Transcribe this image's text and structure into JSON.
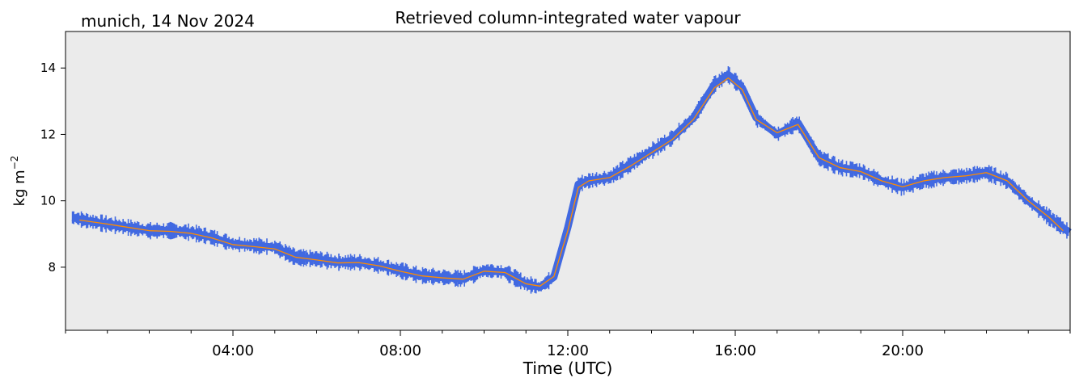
{
  "chart_data": {
    "type": "line",
    "title": "Retrieved column-integrated water vapour",
    "location_date": "munich, 14 Nov 2024",
    "xlabel": "Time (UTC)",
    "ylabel": "kg m",
    "ylabel_exponent": "−2",
    "xlim": [
      "00:00",
      "24:00"
    ],
    "ylim": [
      6.1,
      15.1
    ],
    "x_ticks": [
      "04:00",
      "08:00",
      "12:00",
      "16:00",
      "20:00"
    ],
    "y_ticks": [
      "8",
      "10",
      "12",
      "14"
    ],
    "grid": false,
    "legend": "none",
    "background_color": "#ebebeb",
    "series": [
      {
        "role": "raw retrieval",
        "color": "#4169e1",
        "x": [
          "00:10",
          "00:30",
          "01:00",
          "01:30",
          "02:00",
          "02:30",
          "03:00",
          "03:30",
          "04:00",
          "04:30",
          "05:00",
          "05:30",
          "06:00",
          "06:30",
          "07:00",
          "07:30",
          "08:00",
          "08:30",
          "09:00",
          "09:30",
          "10:00",
          "10:30",
          "11:00",
          "11:20",
          "11:40",
          "12:00",
          "12:15",
          "12:30",
          "13:00",
          "13:30",
          "14:00",
          "14:30",
          "15:00",
          "15:30",
          "15:50",
          "16:10",
          "16:30",
          "17:00",
          "17:30",
          "18:00",
          "18:30",
          "19:00",
          "19:30",
          "20:00",
          "20:30",
          "21:00",
          "21:30",
          "22:00",
          "22:30",
          "23:00",
          "23:30",
          "23:59"
        ],
        "y": [
          9.5,
          9.4,
          9.3,
          9.2,
          9.1,
          9.1,
          9.05,
          8.9,
          8.7,
          8.65,
          8.6,
          8.3,
          8.25,
          8.15,
          8.15,
          8.05,
          7.9,
          7.75,
          7.7,
          7.65,
          7.9,
          7.85,
          7.5,
          7.4,
          7.7,
          9.2,
          10.5,
          10.6,
          10.7,
          11.1,
          11.5,
          11.9,
          12.5,
          13.5,
          13.8,
          13.4,
          12.5,
          12.0,
          12.35,
          11.3,
          11.0,
          10.9,
          10.6,
          10.4,
          10.6,
          10.7,
          10.75,
          10.85,
          10.6,
          10.0,
          9.5,
          9.05
        ]
      },
      {
        "role": "smoothed",
        "color": "#ff8c00",
        "x": [
          "00:20",
          "01:00",
          "01:30",
          "02:00",
          "02:30",
          "03:00",
          "03:30",
          "04:00",
          "04:30",
          "05:00",
          "05:30",
          "06:00",
          "06:30",
          "07:00",
          "07:30",
          "08:00",
          "08:30",
          "09:00",
          "09:30",
          "10:00",
          "10:30",
          "11:00",
          "11:20",
          "11:40",
          "12:00",
          "12:15",
          "12:30",
          "13:00",
          "13:30",
          "14:00",
          "14:30",
          "15:00",
          "15:30",
          "15:50",
          "16:10",
          "16:30",
          "17:00",
          "17:30",
          "18:00",
          "18:30",
          "19:00",
          "19:30",
          "20:00",
          "20:30",
          "21:00",
          "21:30",
          "22:00",
          "22:30",
          "23:00",
          "23:30",
          "23:50"
        ],
        "y": [
          9.42,
          9.3,
          9.2,
          9.1,
          9.08,
          9.02,
          8.88,
          8.68,
          8.62,
          8.55,
          8.3,
          8.22,
          8.13,
          8.14,
          8.04,
          7.88,
          7.74,
          7.68,
          7.64,
          7.88,
          7.84,
          7.5,
          7.43,
          7.72,
          9.1,
          10.4,
          10.6,
          10.7,
          11.05,
          11.45,
          11.85,
          12.45,
          13.4,
          13.7,
          13.35,
          12.45,
          12.05,
          12.3,
          11.3,
          11.0,
          10.88,
          10.6,
          10.42,
          10.6,
          10.7,
          10.75,
          10.85,
          10.6,
          10.0,
          9.5,
          9.1
        ]
      }
    ]
  }
}
